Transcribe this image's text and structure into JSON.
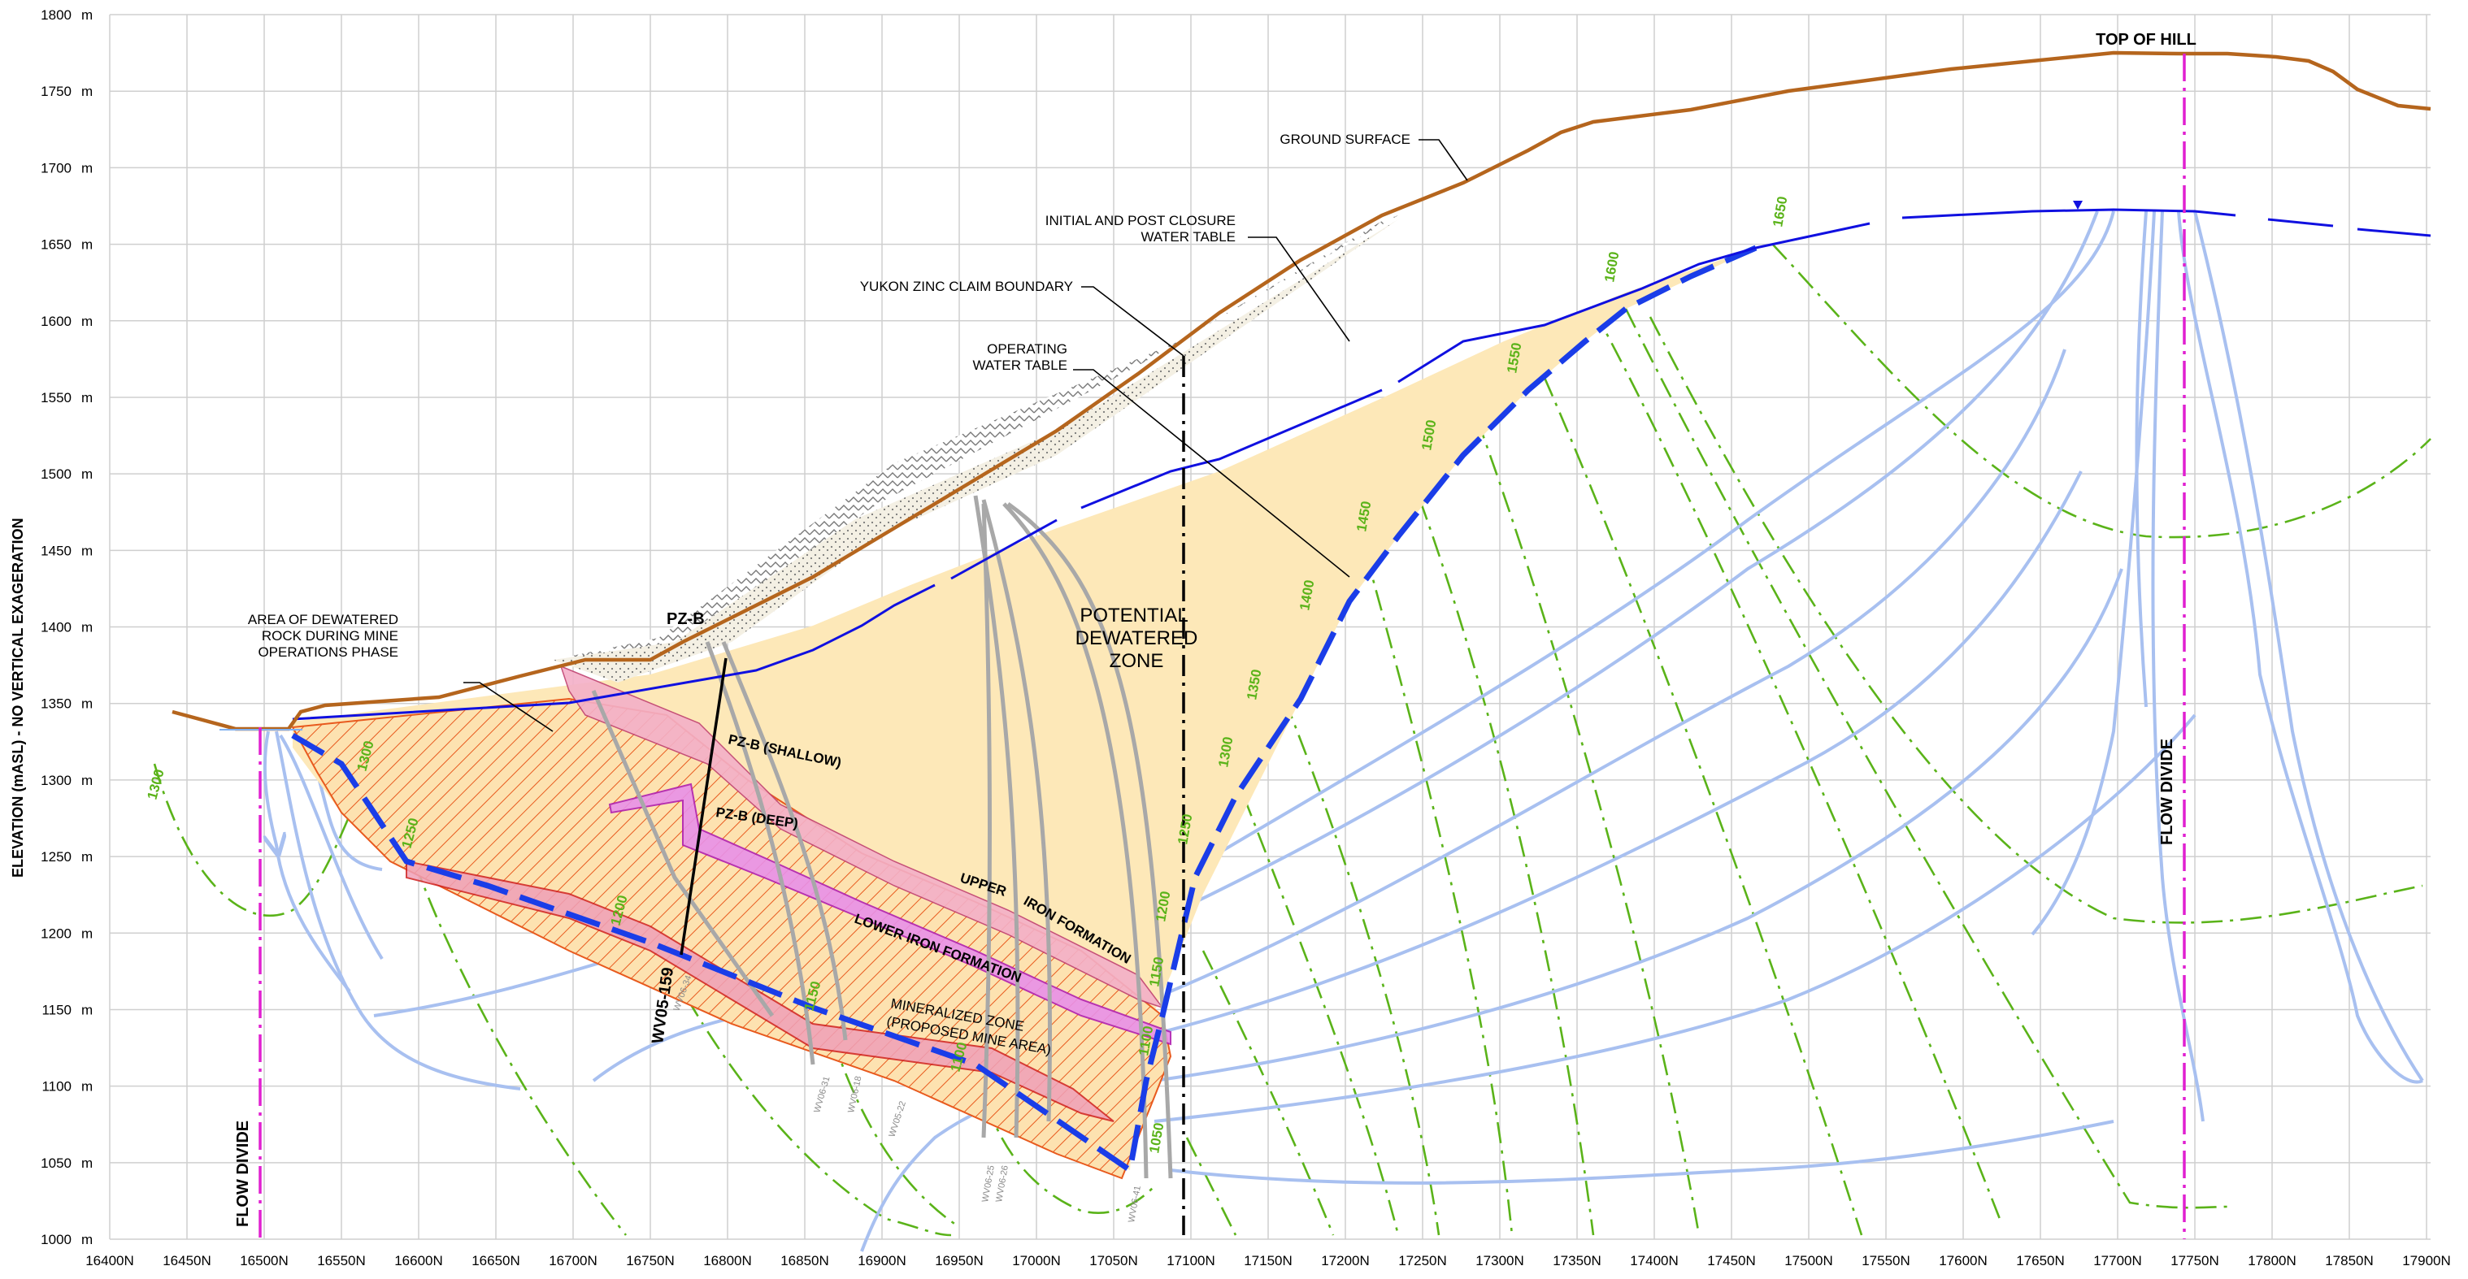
{
  "y_axis": {
    "label": "ELEVATION (mASL) - NO VERTICAL EXAGERATION",
    "unit": "m",
    "ticks": [
      1000,
      1050,
      1100,
      1150,
      1200,
      1250,
      1300,
      1350,
      1400,
      1450,
      1500,
      1550,
      1600,
      1650,
      1700,
      1750,
      1800
    ]
  },
  "x_axis": {
    "ticks": [
      "16400N",
      "16450N",
      "16500N",
      "16550N",
      "16600N",
      "16650N",
      "16700N",
      "16750N",
      "16800N",
      "16850N",
      "16900N",
      "16950N",
      "17000N",
      "17050N",
      "17100N",
      "17150N",
      "17200N",
      "17250N",
      "17300N",
      "17350N",
      "17400N",
      "17450N",
      "17500N",
      "17550N",
      "17600N",
      "17650N",
      "17700N",
      "17750N",
      "17800N",
      "17850N",
      "17900N"
    ]
  },
  "labels": {
    "top_of_hill": "TOP OF HILL",
    "ground_surface": "GROUND SURFACE",
    "initial_wt_1": "INITIAL AND POST CLOSURE",
    "initial_wt_2": "WATER TABLE",
    "claim_boundary": "YUKON ZINC CLAIM BOUNDARY",
    "operating_wt_1": "OPERATING",
    "operating_wt_2": "WATER TABLE",
    "dewatered_1": "AREA OF DEWATERED",
    "dewatered_2": "ROCK DURING MINE",
    "dewatered_3": "OPERATIONS PHASE",
    "pz_b": "PZ-B",
    "potential_1": "POTENTIAL",
    "potential_2": "DEWATERED",
    "potential_3": "ZONE",
    "pz_shallow": "PZ-B (SHALLOW)",
    "pz_deep": "PZ-B (DEEP)",
    "upper_if_1": "UPPER",
    "upper_if_2": "IRON FORMATION",
    "lower_if": "LOWER IRON FORMATION",
    "mineralized_1": "MINERALIZED ZONE",
    "mineralized_2": "(PROPOSED MINE AREA)",
    "wv05_159": "WV05-159",
    "flow_divide_left": "FLOW DIVIDE",
    "flow_divide_right": "FLOW DIVIDE"
  },
  "contour_labels": [
    "1300",
    "1300",
    "1250",
    "1200",
    "1150",
    "1100",
    "1050",
    "1100",
    "1150",
    "1200",
    "1250",
    "1300",
    "1350",
    "1400",
    "1450",
    "1500",
    "1550",
    "1600",
    "1650"
  ],
  "drillhole_labels": [
    "WV06-34",
    "WV05-22",
    "WV06-18",
    "WV06-25",
    "WV06-26",
    "WV06-41",
    "WV06-31"
  ],
  "colors": {
    "ground": "#b5651d",
    "water_table_initial": "#1010e0",
    "water_table_operating": "#1a3de8",
    "dewatered_fill": "#fde8b8",
    "mineralized_hatch": "#e85a1e",
    "iron_formation": "#f4b0c8",
    "flow_divide": "#e020d0",
    "flow_lines": "#a8c0f0",
    "equipotential": "#5ab319",
    "grid": "#cfcfcf"
  }
}
